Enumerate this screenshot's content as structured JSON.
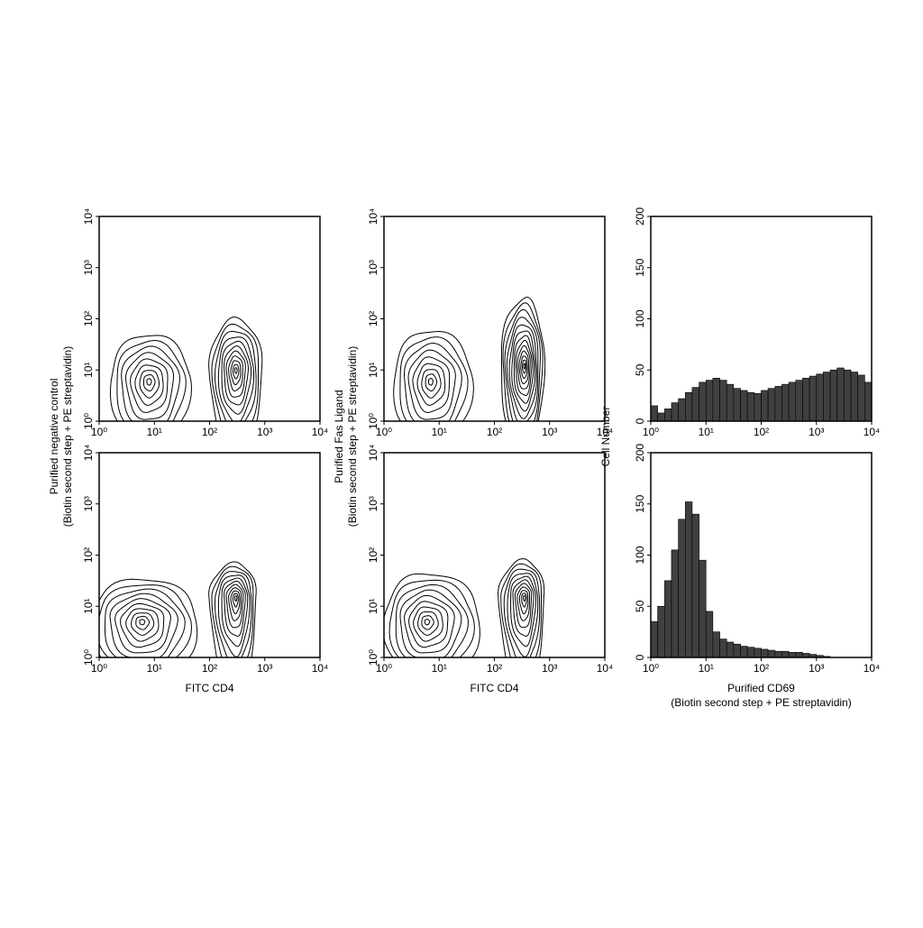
{
  "chart_data": [
    {
      "type": "contour",
      "xscale": "log",
      "yscale": "log",
      "xlim": [
        1,
        10000
      ],
      "ylim": [
        1,
        10000
      ],
      "xticks": [
        {
          "value": 1,
          "label": "10⁰"
        },
        {
          "value": 10,
          "label": "10¹"
        },
        {
          "value": 100,
          "label": "10²"
        },
        {
          "value": 1000,
          "label": "10³"
        },
        {
          "value": 10000,
          "label": "10⁴"
        }
      ],
      "yticks": [
        {
          "value": 1,
          "label": "10⁰"
        },
        {
          "value": 10,
          "label": "10¹"
        },
        {
          "value": 100,
          "label": "10²"
        },
        {
          "value": 1000,
          "label": "10³"
        },
        {
          "value": 10000,
          "label": "10⁴"
        }
      ],
      "ylabel": [
        "Purified negative control",
        "(Biotin second step + PE streptavidin)"
      ],
      "clusters": [
        {
          "x": 8,
          "y": 6,
          "x_range": [
            1.6,
            45
          ],
          "y_range": [
            0.3,
            50
          ],
          "levels": 9
        },
        {
          "x": 300,
          "y": 10,
          "x_range": [
            100,
            900
          ],
          "y_range": [
            0.3,
            100
          ],
          "levels": 11
        }
      ]
    },
    {
      "type": "contour",
      "xscale": "log",
      "yscale": "log",
      "xlim": [
        1,
        10000
      ],
      "ylim": [
        1,
        10000
      ],
      "xticks": [
        {
          "value": 1,
          "label": "10⁰"
        },
        {
          "value": 10,
          "label": "10¹"
        },
        {
          "value": 100,
          "label": "10²"
        },
        {
          "value": 1000,
          "label": "10³"
        },
        {
          "value": 10000,
          "label": "10⁴"
        }
      ],
      "yticks": [
        {
          "value": 1,
          "label": "10⁰"
        },
        {
          "value": 10,
          "label": "10¹"
        },
        {
          "value": 100,
          "label": "10²"
        },
        {
          "value": 1000,
          "label": "10³"
        },
        {
          "value": 10000,
          "label": "10⁴"
        }
      ],
      "ylabel": [
        "Purified Fas Ligand",
        "(Biotin second step + PE streptavidin)"
      ],
      "clusters": [
        {
          "x": 7,
          "y": 6,
          "x_range": [
            1.5,
            40
          ],
          "y_range": [
            0.3,
            60
          ],
          "levels": 9
        },
        {
          "x": 350,
          "y": 12,
          "x_range": [
            130,
            800
          ],
          "y_range": [
            0.3,
            250
          ],
          "levels": 13
        }
      ]
    },
    {
      "type": "histogram",
      "xscale": "log",
      "xlim": [
        1,
        10000
      ],
      "ylim": [
        0,
        200
      ],
      "color": "#404040",
      "xticks": [
        {
          "value": 1,
          "label": "10⁰"
        },
        {
          "value": 10,
          "label": "10¹"
        },
        {
          "value": 100,
          "label": "10²"
        },
        {
          "value": 1000,
          "label": "10³"
        },
        {
          "value": 10000,
          "label": "10⁴"
        }
      ],
      "yticks": [
        0,
        50,
        100,
        150,
        200
      ],
      "ylabel": "Cell Number",
      "bins": [
        1,
        1.33,
        1.78,
        2.37,
        3.16,
        4.22,
        5.62,
        7.5,
        10,
        13.3,
        17.8,
        23.7,
        31.6,
        42.2,
        56.2,
        75,
        100,
        133,
        178,
        237,
        316,
        422,
        562,
        750,
        1000,
        1334,
        1778,
        2371,
        3162,
        4217,
        5623,
        7499,
        10000
      ],
      "values": [
        15,
        8,
        12,
        18,
        22,
        28,
        33,
        38,
        40,
        42,
        40,
        36,
        32,
        30,
        28,
        27,
        30,
        32,
        34,
        36,
        38,
        40,
        42,
        44,
        46,
        48,
        50,
        52,
        50,
        48,
        45,
        38
      ]
    },
    {
      "type": "contour",
      "xscale": "log",
      "yscale": "log",
      "xlim": [
        1,
        10000
      ],
      "ylim": [
        1,
        10000
      ],
      "xticks": [
        {
          "value": 1,
          "label": "10⁰"
        },
        {
          "value": 10,
          "label": "10¹"
        },
        {
          "value": 100,
          "label": "10²"
        },
        {
          "value": 1000,
          "label": "10³"
        },
        {
          "value": 10000,
          "label": "10⁴"
        }
      ],
      "yticks": [
        {
          "value": 1,
          "label": "10⁰"
        },
        {
          "value": 10,
          "label": "10¹"
        },
        {
          "value": 100,
          "label": "10²"
        },
        {
          "value": 1000,
          "label": "10³"
        },
        {
          "value": 10000,
          "label": "10⁴"
        }
      ],
      "xlabel": "FITC CD4",
      "clusters": [
        {
          "x": 6,
          "y": 5,
          "x_range": [
            0.7,
            60
          ],
          "y_range": [
            0.3,
            35
          ],
          "levels": 10
        },
        {
          "x": 300,
          "y": 15,
          "x_range": [
            100,
            700
          ],
          "y_range": [
            0.3,
            70
          ],
          "levels": 11
        }
      ]
    },
    {
      "type": "contour",
      "xscale": "log",
      "yscale": "log",
      "xlim": [
        1,
        10000
      ],
      "ylim": [
        1,
        10000
      ],
      "xticks": [
        {
          "value": 1,
          "label": "10⁰"
        },
        {
          "value": 10,
          "label": "10¹"
        },
        {
          "value": 100,
          "label": "10²"
        },
        {
          "value": 1000,
          "label": "10³"
        },
        {
          "value": 10000,
          "label": "10⁴"
        }
      ],
      "yticks": [
        {
          "value": 1,
          "label": "10⁰"
        },
        {
          "value": 10,
          "label": "10¹"
        },
        {
          "value": 100,
          "label": "10²"
        },
        {
          "value": 1000,
          "label": "10³"
        },
        {
          "value": 10000,
          "label": "10⁴"
        }
      ],
      "xlabel": "FITC CD4",
      "clusters": [
        {
          "x": 6,
          "y": 5,
          "x_range": [
            1,
            55
          ],
          "y_range": [
            0.3,
            45
          ],
          "levels": 10
        },
        {
          "x": 350,
          "y": 15,
          "x_range": [
            120,
            800
          ],
          "y_range": [
            0.3,
            80
          ],
          "levels": 11
        }
      ]
    },
    {
      "type": "histogram",
      "xscale": "log",
      "xlim": [
        1,
        10000
      ],
      "ylim": [
        0,
        200
      ],
      "color": "#404040",
      "xticks": [
        {
          "value": 1,
          "label": "10⁰"
        },
        {
          "value": 10,
          "label": "10¹"
        },
        {
          "value": 100,
          "label": "10²"
        },
        {
          "value": 1000,
          "label": "10³"
        },
        {
          "value": 10000,
          "label": "10⁴"
        }
      ],
      "yticks": [
        0,
        50,
        100,
        150,
        200
      ],
      "xlabel": [
        "Purified CD69",
        "(Biotin second step + PE streptavidin)"
      ],
      "bins": [
        1,
        1.33,
        1.78,
        2.37,
        3.16,
        4.22,
        5.62,
        7.5,
        10,
        13.3,
        17.8,
        23.7,
        31.6,
        42.2,
        56.2,
        75,
        100,
        133,
        178,
        237,
        316,
        422,
        562,
        750,
        1000,
        1334,
        1778,
        2371,
        3162,
        4217,
        5623,
        7499,
        10000
      ],
      "values": [
        35,
        50,
        75,
        105,
        135,
        152,
        140,
        95,
        45,
        25,
        18,
        15,
        13,
        11,
        10,
        9,
        8,
        7,
        6,
        6,
        5,
        5,
        4,
        3,
        2,
        1,
        0,
        0,
        0,
        0,
        0,
        0
      ]
    }
  ]
}
